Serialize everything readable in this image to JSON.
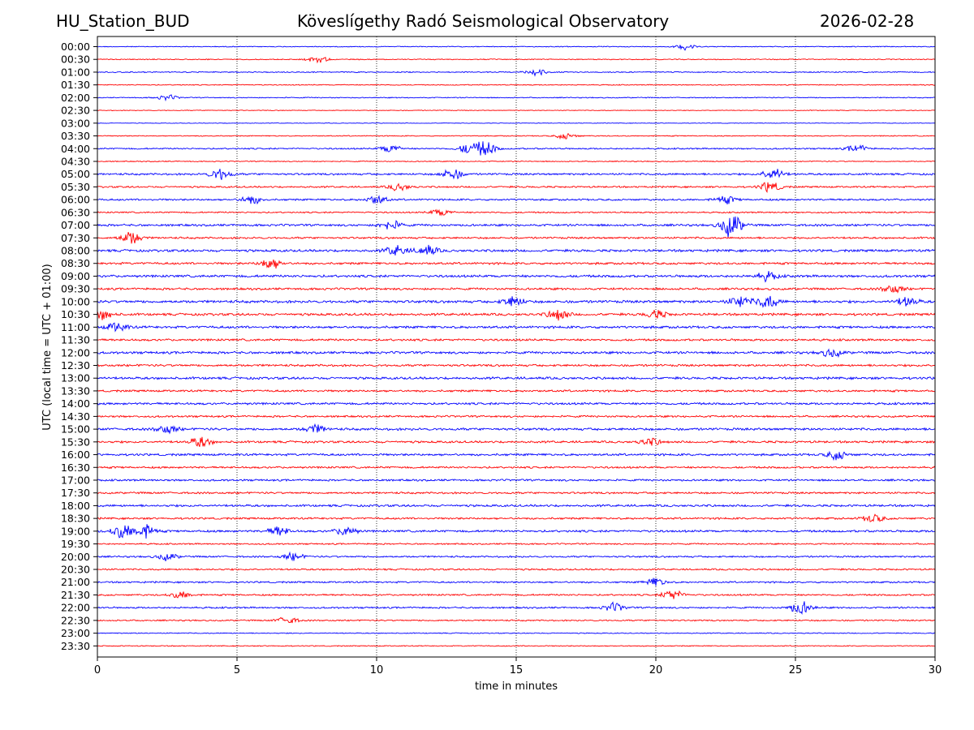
{
  "header": {
    "station": "HU_Station_BUD",
    "title": "Köveslígethy Radó Seismological Observatory",
    "date": "2026-02-28"
  },
  "chart_data": {
    "type": "line",
    "title": "Köveslígethy Radó Seismological Observatory",
    "xlabel": "time in minutes",
    "ylabel": "UTC (local time = UTC + 01:00)",
    "xlim": [
      0,
      30
    ],
    "xticks": [
      0,
      5,
      10,
      15,
      20,
      25,
      30
    ],
    "xtick_labels": [
      "0",
      "5",
      "10",
      "15",
      "20",
      "25",
      "30"
    ],
    "grid": "vertical dotted lines at 5-minute intervals",
    "trace_colors": [
      "#0000ff",
      "#ff0000"
    ],
    "trace_interval_minutes": 30,
    "trace_labels": [
      "00:00",
      "00:30",
      "01:00",
      "01:30",
      "02:00",
      "02:30",
      "03:00",
      "03:30",
      "04:00",
      "04:30",
      "05:00",
      "05:30",
      "06:00",
      "06:30",
      "07:00",
      "07:30",
      "08:00",
      "08:30",
      "09:00",
      "09:30",
      "10:00",
      "10:30",
      "11:00",
      "11:30",
      "12:00",
      "12:30",
      "13:00",
      "13:30",
      "14:00",
      "14:30",
      "15:00",
      "15:30",
      "16:00",
      "16:30",
      "17:00",
      "17:30",
      "18:00",
      "18:30",
      "19:00",
      "19:30",
      "20:00",
      "20:30",
      "21:00",
      "21:30",
      "22:00",
      "22:30",
      "23:00",
      "23:30"
    ],
    "noise_level": [
      0.18,
      0.2,
      0.22,
      0.2,
      0.2,
      0.15,
      0.12,
      0.2,
      0.3,
      0.2,
      0.4,
      0.35,
      0.38,
      0.3,
      0.45,
      0.4,
      0.5,
      0.45,
      0.5,
      0.45,
      0.55,
      0.5,
      0.5,
      0.45,
      0.5,
      0.45,
      0.5,
      0.42,
      0.45,
      0.4,
      0.5,
      0.45,
      0.45,
      0.4,
      0.4,
      0.4,
      0.45,
      0.4,
      0.45,
      0.3,
      0.35,
      0.35,
      0.35,
      0.35,
      0.35,
      0.3,
      0.2,
      0.2
    ],
    "events": [
      {
        "trace": "00:00",
        "minute": 21.1,
        "amplitude": 0.6
      },
      {
        "trace": "00:30",
        "minute": 7.9,
        "amplitude": 0.6
      },
      {
        "trace": "01:00",
        "minute": 15.7,
        "amplitude": 0.7
      },
      {
        "trace": "02:00",
        "minute": 2.5,
        "amplitude": 0.5
      },
      {
        "trace": "03:30",
        "minute": 16.8,
        "amplitude": 0.6
      },
      {
        "trace": "04:00",
        "minute": 10.5,
        "amplitude": 0.8
      },
      {
        "trace": "04:00",
        "minute": 13.3,
        "amplitude": 1.0
      },
      {
        "trace": "04:00",
        "minute": 13.9,
        "amplitude": 1.4
      },
      {
        "trace": "04:00",
        "minute": 27.2,
        "amplitude": 0.7
      },
      {
        "trace": "05:00",
        "minute": 4.4,
        "amplitude": 1.1
      },
      {
        "trace": "05:00",
        "minute": 12.7,
        "amplitude": 1.1
      },
      {
        "trace": "05:00",
        "minute": 24.2,
        "amplitude": 1.2
      },
      {
        "trace": "05:30",
        "minute": 10.8,
        "amplitude": 0.7
      },
      {
        "trace": "05:30",
        "minute": 24.1,
        "amplitude": 1.0
      },
      {
        "trace": "06:00",
        "minute": 5.5,
        "amplitude": 0.8
      },
      {
        "trace": "06:00",
        "minute": 10.0,
        "amplitude": 0.8
      },
      {
        "trace": "06:00",
        "minute": 22.5,
        "amplitude": 0.7
      },
      {
        "trace": "06:30",
        "minute": 12.3,
        "amplitude": 0.7
      },
      {
        "trace": "07:00",
        "minute": 10.5,
        "amplitude": 0.9
      },
      {
        "trace": "07:00",
        "minute": 22.7,
        "amplitude": 2.4
      },
      {
        "trace": "07:30",
        "minute": 1.2,
        "amplitude": 1.3
      },
      {
        "trace": "08:00",
        "minute": 10.7,
        "amplitude": 1.0
      },
      {
        "trace": "08:00",
        "minute": 11.8,
        "amplitude": 1.0
      },
      {
        "trace": "08:30",
        "minute": 6.2,
        "amplitude": 1.1
      },
      {
        "trace": "09:00",
        "minute": 24.0,
        "amplitude": 0.8
      },
      {
        "trace": "09:30",
        "minute": 28.5,
        "amplitude": 0.8
      },
      {
        "trace": "10:00",
        "minute": 14.9,
        "amplitude": 1.0
      },
      {
        "trace": "10:00",
        "minute": 23.0,
        "amplitude": 1.1
      },
      {
        "trace": "10:00",
        "minute": 24.0,
        "amplitude": 1.3
      },
      {
        "trace": "10:00",
        "minute": 29.0,
        "amplitude": 0.9
      },
      {
        "trace": "10:30",
        "minute": 0.2,
        "amplitude": 0.9
      },
      {
        "trace": "10:30",
        "minute": 16.5,
        "amplitude": 1.1
      },
      {
        "trace": "10:30",
        "minute": 20.0,
        "amplitude": 0.8
      },
      {
        "trace": "11:00",
        "minute": 0.7,
        "amplitude": 0.9
      },
      {
        "trace": "12:00",
        "minute": 26.3,
        "amplitude": 0.8
      },
      {
        "trace": "15:00",
        "minute": 2.5,
        "amplitude": 0.8
      },
      {
        "trace": "15:00",
        "minute": 7.8,
        "amplitude": 0.8
      },
      {
        "trace": "15:30",
        "minute": 3.7,
        "amplitude": 1.0
      },
      {
        "trace": "15:30",
        "minute": 19.8,
        "amplitude": 0.7
      },
      {
        "trace": "16:00",
        "minute": 26.5,
        "amplitude": 0.9
      },
      {
        "trace": "18:30",
        "minute": 27.8,
        "amplitude": 0.8
      },
      {
        "trace": "19:00",
        "minute": 0.9,
        "amplitude": 1.5
      },
      {
        "trace": "19:00",
        "minute": 1.7,
        "amplitude": 1.3
      },
      {
        "trace": "19:00",
        "minute": 6.5,
        "amplitude": 0.9
      },
      {
        "trace": "19:00",
        "minute": 8.9,
        "amplitude": 0.9
      },
      {
        "trace": "20:00",
        "minute": 2.5,
        "amplitude": 0.7
      },
      {
        "trace": "20:00",
        "minute": 7.0,
        "amplitude": 0.7
      },
      {
        "trace": "21:00",
        "minute": 20.0,
        "amplitude": 0.8
      },
      {
        "trace": "21:30",
        "minute": 3.0,
        "amplitude": 0.7
      },
      {
        "trace": "21:30",
        "minute": 20.6,
        "amplitude": 1.0
      },
      {
        "trace": "22:00",
        "minute": 18.5,
        "amplitude": 0.8
      },
      {
        "trace": "22:00",
        "minute": 25.2,
        "amplitude": 1.3
      },
      {
        "trace": "22:30",
        "minute": 6.8,
        "amplitude": 0.7
      }
    ]
  }
}
